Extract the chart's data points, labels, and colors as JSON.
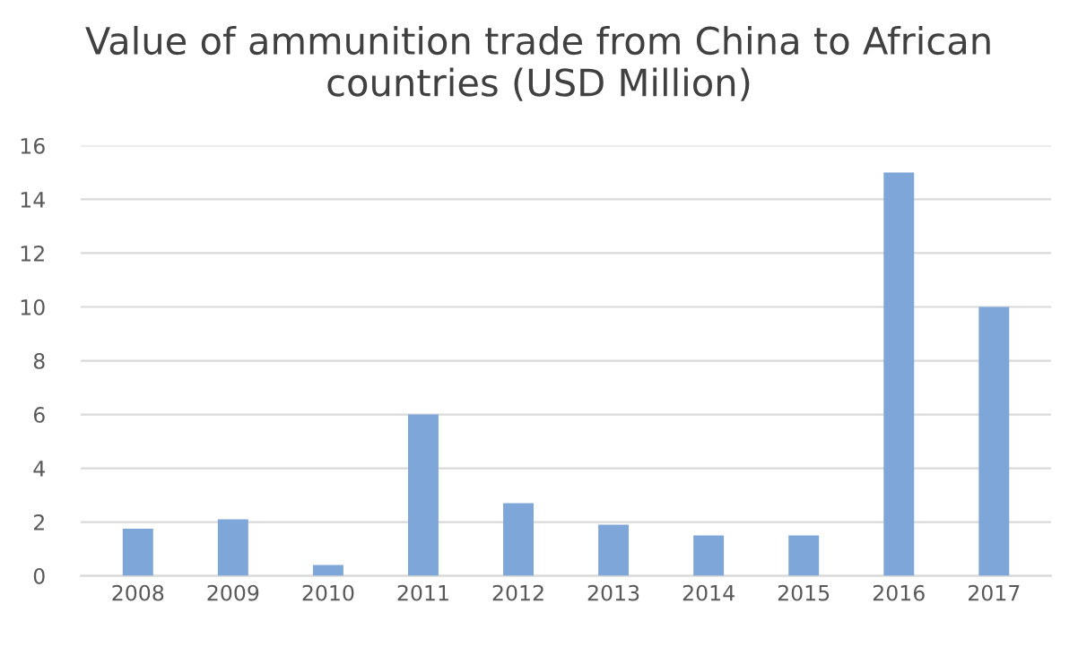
{
  "chart_data": {
    "type": "bar",
    "title": "Value of ammunition trade from China to African countries (USD Million)",
    "categories": [
      "2008",
      "2009",
      "2010",
      "2011",
      "2012",
      "2013",
      "2014",
      "2015",
      "2016",
      "2017"
    ],
    "values": [
      1.75,
      2.1,
      0.4,
      6.0,
      2.7,
      1.9,
      1.5,
      1.5,
      15.0,
      10.0
    ],
    "color": "#7ea6d9",
    "ylim": [
      0,
      16
    ],
    "yticks": [
      0,
      2,
      4,
      6,
      8,
      10,
      12,
      14,
      16
    ],
    "grid": "y"
  }
}
